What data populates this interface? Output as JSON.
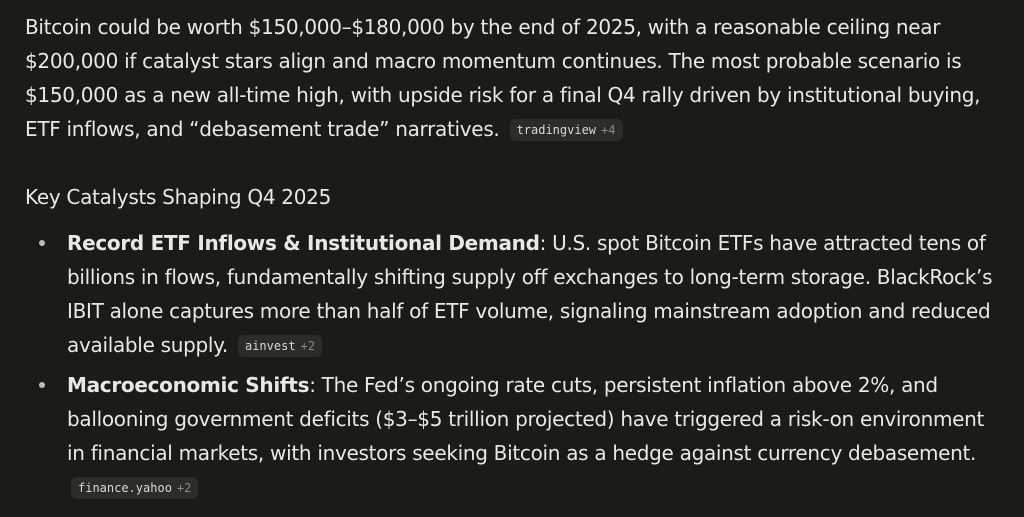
{
  "intro": {
    "text": "Bitcoin could be worth $150,000–$180,000 by the end of 2025, with a reasonable ceiling near $200,000 if catalyst stars align and macro momentum continues. The most probable scenario is $150,000 as a new all-time high, with upside risk for a final Q4 rally driven by institutional buying, ETF inflows, and “debasement trade” narratives.",
    "citation": {
      "source": "tradingview",
      "more": "+4"
    }
  },
  "section": {
    "heading": "Key Catalysts Shaping Q4 2025",
    "bullets": [
      {
        "title": "Record ETF Inflows & Institutional Demand",
        "text": ": U.S. spot Bitcoin ETFs have attracted tens of billions in flows, fundamentally shifting supply off exchanges to long-term storage. BlackRock’s IBIT alone captures more than half of ETF volume, signaling mainstream adoption and reduced available supply.",
        "citation": {
          "source": "ainvest",
          "more": "+2"
        }
      },
      {
        "title": "Macroeconomic Shifts",
        "text": ": The Fed’s ongoing rate cuts, persistent inflation above 2%, and ballooning government deficits ($3–$5 trillion projected) have triggered a risk-on environment in financial markets, with investors seeking Bitcoin as a hedge against currency debasement.",
        "citation": {
          "source": "finance.yahoo",
          "more": "+2"
        }
      }
    ]
  }
}
